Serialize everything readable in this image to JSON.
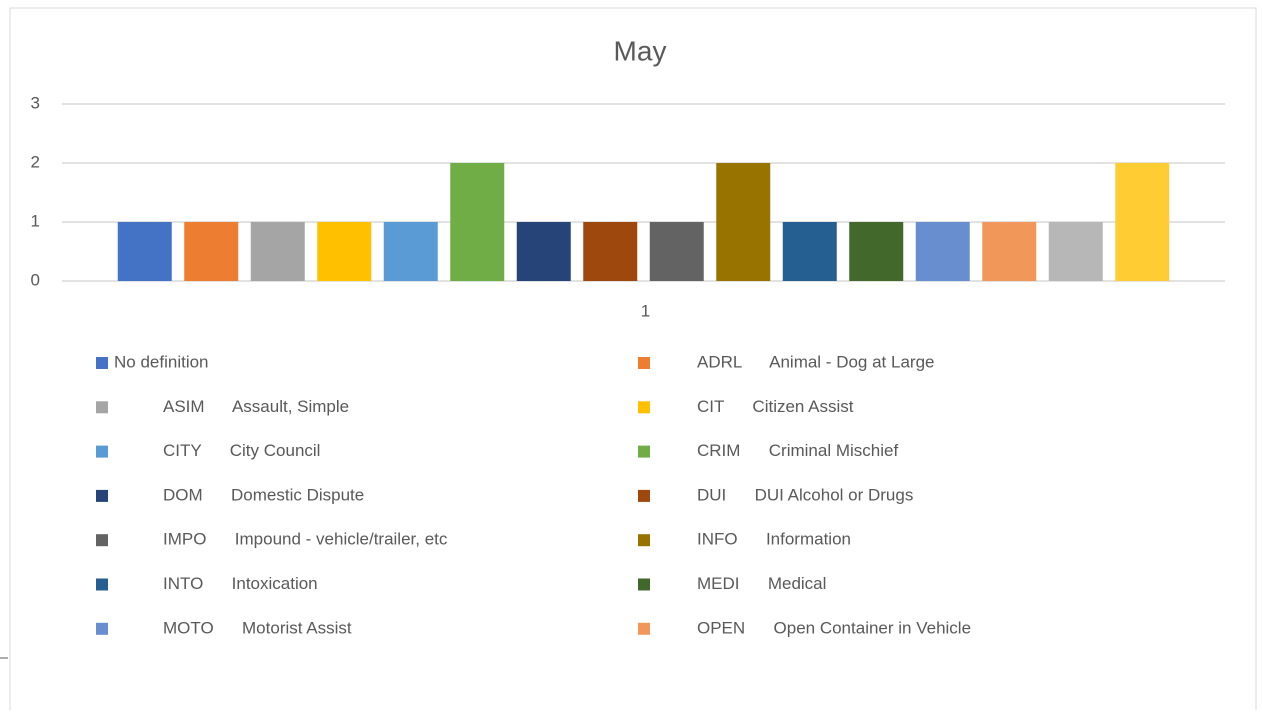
{
  "chart_data": {
    "type": "bar",
    "title": "May",
    "categories": [
      "1"
    ],
    "ylim": [
      0,
      3
    ],
    "yticks": [
      0,
      1,
      2,
      3
    ],
    "grid": true,
    "legend": "bottom",
    "series": [
      {
        "name": "No definition",
        "color": "#4472c4",
        "values": [
          1
        ]
      },
      {
        "name": "ADRL      Animal - Dog at Large",
        "color": "#ed7d31",
        "values": [
          1
        ]
      },
      {
        "name": "ASIM      Assault, Simple",
        "color": "#a5a5a5",
        "values": [
          1
        ]
      },
      {
        "name": "CIT      Citizen Assist",
        "color": "#ffc000",
        "values": [
          1
        ]
      },
      {
        "name": "CITY      City Council",
        "color": "#5b9bd5",
        "values": [
          1
        ]
      },
      {
        "name": "CRIM      Criminal Mischief",
        "color": "#70ad47",
        "values": [
          2
        ]
      },
      {
        "name": "DOM      Domestic Dispute",
        "color": "#264478",
        "values": [
          1
        ]
      },
      {
        "name": "DUI      DUI Alcohol or Drugs",
        "color": "#9e480e",
        "values": [
          1
        ]
      },
      {
        "name": "IMPO      Impound - vehicle/trailer, etc",
        "color": "#636363",
        "values": [
          1
        ]
      },
      {
        "name": "INFO      Information",
        "color": "#997300",
        "values": [
          2
        ]
      },
      {
        "name": "INTO      Intoxication",
        "color": "#255e91",
        "values": [
          1
        ]
      },
      {
        "name": "MEDI      Medical",
        "color": "#43682b",
        "values": [
          1
        ]
      },
      {
        "name": "MOTO      Motorist Assist",
        "color": "#698ed0",
        "values": [
          1
        ]
      },
      {
        "name": "OPEN      Open Container in Vehicle",
        "color": "#f1975a",
        "values": [
          1
        ]
      },
      {
        "color": "#b7b7b7",
        "values": [
          1
        ]
      },
      {
        "color": "#ffcd33",
        "values": [
          2
        ]
      }
    ]
  }
}
